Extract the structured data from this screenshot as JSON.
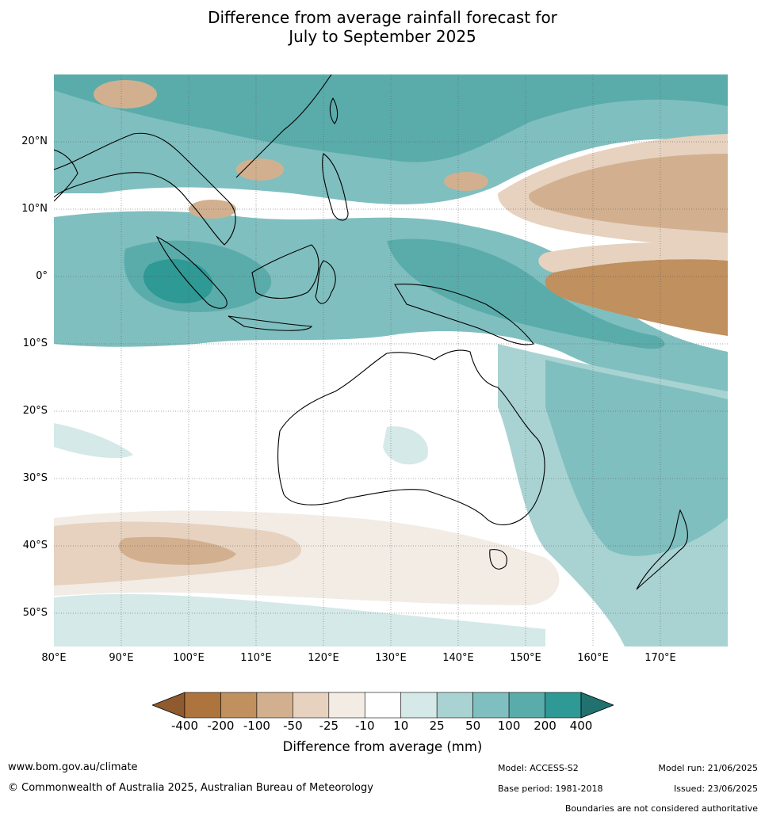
{
  "title_line1": "Difference from average rainfall forecast for",
  "title_line2": "July to September 2025",
  "lat_labels": [
    "20°N",
    "10°N",
    "0°",
    "10°S",
    "20°S",
    "30°S",
    "40°S",
    "50°S"
  ],
  "lon_labels": [
    "80°E",
    "90°E",
    "100°E",
    "110°E",
    "120°E",
    "130°E",
    "140°E",
    "150°E",
    "160°E",
    "170°E"
  ],
  "legend": {
    "title": "Difference from average (mm)",
    "ticks": [
      "-400",
      "-200",
      "-100",
      "-50",
      "-25",
      "-10",
      "10",
      "25",
      "50",
      "100",
      "200",
      "400"
    ],
    "colors": [
      "#8f5a2e",
      "#ad743d",
      "#c0905f",
      "#d2b08f",
      "#e6d2bf",
      "#f2ece5",
      "#ffffff",
      "#d4e9e8",
      "#a9d3d2",
      "#80bfbf",
      "#5aacab",
      "#2e9995",
      "#21726f"
    ]
  },
  "footer": {
    "website": "www.bom.gov.au/climate",
    "copyright": "© Commonwealth of Australia 2025, Australian Bureau of Meteorology",
    "model": "Model: ACCESS-S2",
    "base_period": "Base period: 1981-2018",
    "model_run": "Model run: 21/06/2025",
    "issued": "Issued: 23/06/2025",
    "disclaimer": "Boundaries are not considered authoritative"
  }
}
